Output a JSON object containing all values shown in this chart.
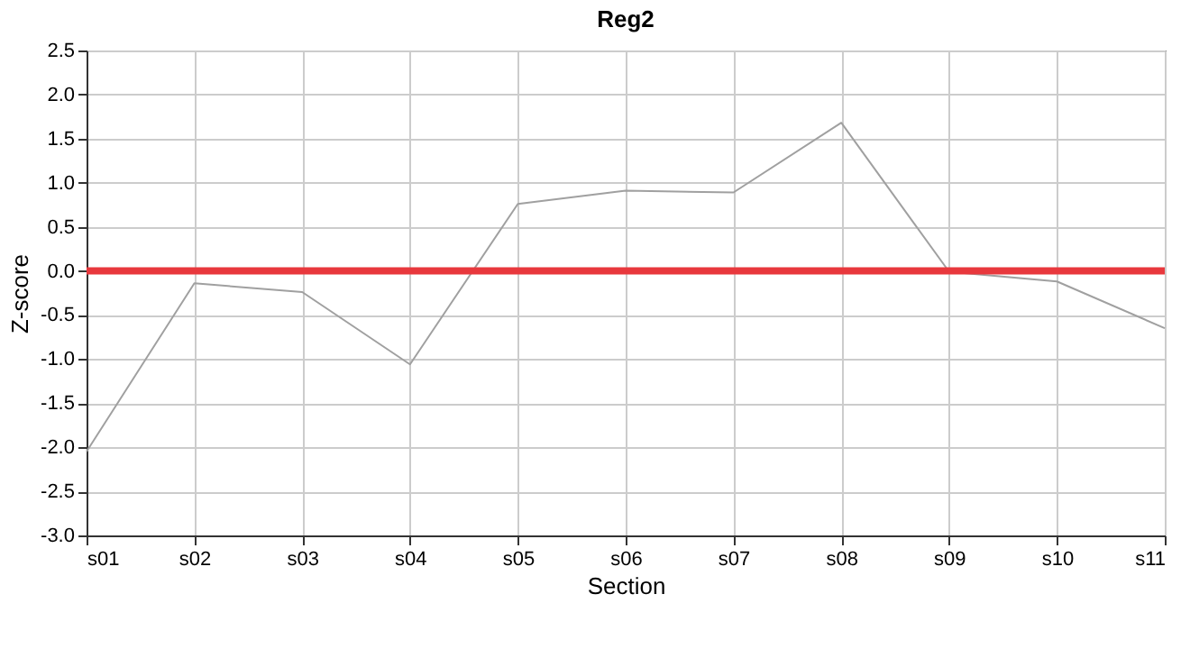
{
  "chart_data": {
    "type": "line",
    "title": "Reg2",
    "xlabel": "Section",
    "ylabel": "Z-score",
    "categories": [
      "s01",
      "s02",
      "s03",
      "s04",
      "s05",
      "s06",
      "s07",
      "s08",
      "s09",
      "s10",
      "s11"
    ],
    "series": [
      {
        "color": "#a0a0a0",
        "values": [
          -2.05,
          -0.14,
          -0.24,
          -1.06,
          0.76,
          0.91,
          0.89,
          1.68,
          -0.01,
          -0.12,
          -0.65
        ]
      }
    ],
    "ylim": [
      -3.0,
      2.5
    ],
    "yticks": [
      {
        "value": -3,
        "label": "-3.0"
      },
      {
        "value": -2.5,
        "label": "-2.5"
      },
      {
        "value": -2,
        "label": "-2.0"
      },
      {
        "value": -1.5,
        "label": "-1.5"
      },
      {
        "value": -1,
        "label": "-1.0"
      },
      {
        "value": -0.5,
        "label": "-0.5"
      },
      {
        "value": 0,
        "label": "0.0"
      },
      {
        "value": 0.5,
        "label": "0.5"
      },
      {
        "value": 1,
        "label": "1.0"
      },
      {
        "value": 1.5,
        "label": "1.5"
      },
      {
        "value": 2,
        "label": "2.0"
      },
      {
        "value": 2.5,
        "label": "2.5"
      }
    ],
    "ref_lines": [
      {
        "axis": "y",
        "value": 0,
        "color": "#e8383d"
      }
    ],
    "grid": true,
    "marker": "none",
    "line_style": "solid"
  }
}
